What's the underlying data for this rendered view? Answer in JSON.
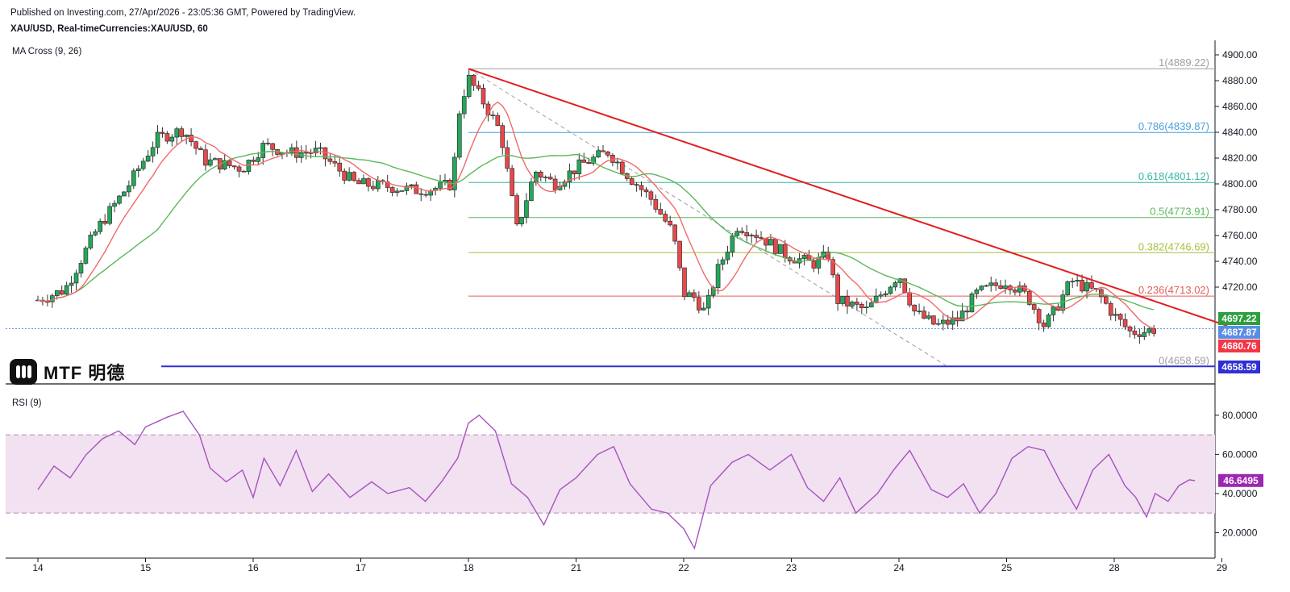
{
  "header": {
    "published": "Published on Investing.com, 27/Apr/2026 - 23:05:36 GMT, Powered by TradingView.",
    "symbol": "XAU/USD, Real-timeCurrencies:XAU/USD, 60"
  },
  "indicators": {
    "ma_label": "MA Cross (9, 26)",
    "rsi_label": "RSI (9)"
  },
  "logo": {
    "text": "MTF 明德"
  },
  "chart_data": {
    "type": "candlestick",
    "x_ticks": [
      "14",
      "15",
      "16",
      "17",
      "18",
      "21",
      "22",
      "23",
      "24",
      "25",
      "28",
      "29"
    ],
    "price_axis": {
      "ylim": [
        4645,
        4905
      ],
      "ticks": [
        "4900.00",
        "4880.00",
        "4860.00",
        "4840.00",
        "4820.00",
        "4800.00",
        "4780.00",
        "4760.00",
        "4740.00",
        "4720.00"
      ]
    },
    "fib_levels": [
      {
        "label": "1(4889.22)",
        "value": 4889.22,
        "color": "#9e9e9e"
      },
      {
        "label": "0.786(4839.87)",
        "value": 4839.87,
        "color": "#4a9fd8"
      },
      {
        "label": "0.618(4801.12)",
        "value": 4801.12,
        "color": "#36b7a5"
      },
      {
        "label": "0.5(4773.91)",
        "value": 4773.91,
        "color": "#5cb85c"
      },
      {
        "label": "0.382(4746.69)",
        "value": 4746.69,
        "color": "#a6c23c"
      },
      {
        "label": "0.236(4713.02)",
        "value": 4713.02,
        "color": "#e0605a"
      },
      {
        "label": "0(4658.59)",
        "value": 4658.59,
        "color": "#9e9e9e"
      }
    ],
    "price_tags": [
      {
        "label": "4697.22",
        "value": 4697.22,
        "color": "#2e9e3e"
      },
      {
        "label": "4687.87",
        "value": 4687.87,
        "color": "#5a8ee6"
      },
      {
        "label": "4680.76",
        "value": 4680.76,
        "color": "#f23645"
      },
      {
        "label": "4658.59",
        "value": 4658.59,
        "color": "#2f2fd6"
      }
    ],
    "trendline": {
      "from": [
        4.0,
        4889.22
      ],
      "to": [
        11.05,
        4690.0
      ],
      "color": "#e02020"
    },
    "key_points": [
      [
        0.0,
        4710
      ],
      [
        0.25,
        4718
      ],
      [
        0.55,
        4765
      ],
      [
        0.85,
        4800
      ],
      [
        1.1,
        4835
      ],
      [
        1.35,
        4842
      ],
      [
        1.55,
        4818
      ],
      [
        1.9,
        4812
      ],
      [
        2.1,
        4830
      ],
      [
        2.35,
        4824
      ],
      [
        2.6,
        4825
      ],
      [
        2.95,
        4800
      ],
      [
        3.25,
        4798
      ],
      [
        3.5,
        4795
      ],
      [
        3.72,
        4797
      ],
      [
        3.85,
        4800
      ],
      [
        3.92,
        4860
      ],
      [
        4.0,
        4882
      ],
      [
        4.15,
        4862
      ],
      [
        4.3,
        4840
      ],
      [
        4.45,
        4765
      ],
      [
        4.62,
        4810
      ],
      [
        4.8,
        4800
      ],
      [
        5.05,
        4815
      ],
      [
        5.3,
        4825
      ],
      [
        5.5,
        4805
      ],
      [
        5.7,
        4788
      ],
      [
        5.9,
        4762
      ],
      [
        6.0,
        4715
      ],
      [
        6.1,
        4712
      ],
      [
        6.2,
        4700
      ],
      [
        6.3,
        4730
      ],
      [
        6.5,
        4768
      ],
      [
        6.7,
        4760
      ],
      [
        6.95,
        4745
      ],
      [
        7.2,
        4738
      ],
      [
        7.35,
        4745
      ],
      [
        7.42,
        4710
      ],
      [
        7.7,
        4702
      ],
      [
        8.0,
        4730
      ],
      [
        8.15,
        4700
      ],
      [
        8.35,
        4690
      ],
      [
        8.55,
        4695
      ],
      [
        8.72,
        4715
      ],
      [
        9.0,
        4725
      ],
      [
        9.2,
        4712
      ],
      [
        9.35,
        4690
      ],
      [
        9.45,
        4702
      ],
      [
        9.6,
        4725
      ],
      [
        9.85,
        4715
      ],
      [
        10.0,
        4698
      ],
      [
        10.15,
        4685
      ],
      [
        10.3,
        4686
      ],
      [
        10.4,
        4688
      ]
    ],
    "ma_fast": {
      "name": "MA 9",
      "color": "#f06a6a"
    },
    "ma_slow": {
      "name": "MA 26",
      "color": "#5cb85c"
    },
    "rsi": {
      "ylim": [
        7,
        89
      ],
      "ticks": [
        "80.0000",
        "60.0000",
        "40.0000",
        "20.0000"
      ],
      "band": [
        30,
        70
      ],
      "current": "46.6495",
      "points": [
        [
          0.0,
          42
        ],
        [
          0.15,
          54
        ],
        [
          0.3,
          48
        ],
        [
          0.45,
          60
        ],
        [
          0.6,
          68
        ],
        [
          0.75,
          72
        ],
        [
          0.9,
          65
        ],
        [
          1.0,
          74
        ],
        [
          1.2,
          79
        ],
        [
          1.35,
          82
        ],
        [
          1.5,
          70
        ],
        [
          1.6,
          53
        ],
        [
          1.75,
          46
        ],
        [
          1.9,
          52
        ],
        [
          2.0,
          38
        ],
        [
          2.1,
          58
        ],
        [
          2.25,
          44
        ],
        [
          2.4,
          62
        ],
        [
          2.55,
          41
        ],
        [
          2.7,
          50
        ],
        [
          2.9,
          38
        ],
        [
          3.1,
          46
        ],
        [
          3.25,
          40
        ],
        [
          3.45,
          43
        ],
        [
          3.6,
          36
        ],
        [
          3.75,
          46
        ],
        [
          3.9,
          58
        ],
        [
          4.0,
          76
        ],
        [
          4.1,
          80
        ],
        [
          4.25,
          72
        ],
        [
          4.4,
          45
        ],
        [
          4.55,
          38
        ],
        [
          4.7,
          24
        ],
        [
          4.85,
          42
        ],
        [
          5.0,
          48
        ],
        [
          5.2,
          60
        ],
        [
          5.35,
          64
        ],
        [
          5.5,
          45
        ],
        [
          5.7,
          32
        ],
        [
          5.85,
          30
        ],
        [
          6.0,
          22
        ],
        [
          6.1,
          12
        ],
        [
          6.25,
          44
        ],
        [
          6.45,
          56
        ],
        [
          6.6,
          60
        ],
        [
          6.8,
          52
        ],
        [
          7.0,
          60
        ],
        [
          7.15,
          43
        ],
        [
          7.3,
          36
        ],
        [
          7.45,
          48
        ],
        [
          7.6,
          30
        ],
        [
          7.8,
          40
        ],
        [
          7.95,
          52
        ],
        [
          8.1,
          62
        ],
        [
          8.3,
          42
        ],
        [
          8.45,
          38
        ],
        [
          8.6,
          45
        ],
        [
          8.75,
          30
        ],
        [
          8.9,
          40
        ],
        [
          9.05,
          58
        ],
        [
          9.2,
          64
        ],
        [
          9.35,
          62
        ],
        [
          9.5,
          46
        ],
        [
          9.65,
          32
        ],
        [
          9.8,
          52
        ],
        [
          9.95,
          60
        ],
        [
          10.1,
          44
        ],
        [
          10.2,
          38
        ],
        [
          10.3,
          28
        ],
        [
          10.38,
          40
        ],
        [
          10.5,
          36
        ],
        [
          10.6,
          44
        ],
        [
          10.7,
          47
        ],
        [
          10.75,
          46.6
        ]
      ]
    }
  }
}
